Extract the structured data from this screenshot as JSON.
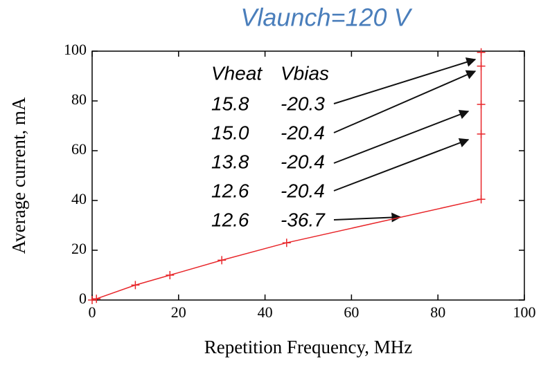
{
  "chart_data": {
    "type": "line",
    "title": "Vlaunch=120 V",
    "xlabel": "Repetition Frequency, MHz",
    "ylabel": "Average current, mA",
    "series": [
      {
        "name": "Average current",
        "color": "#e8262a",
        "x": [
          0,
          1,
          10,
          18,
          30,
          45,
          90,
          90,
          90,
          90,
          90
        ],
        "values": [
          0,
          0.5,
          6,
          10,
          16,
          23,
          40.5,
          66.7,
          78.6,
          94,
          99.5
        ]
      }
    ],
    "xlim": [
      0,
      100
    ],
    "xticks": [
      0,
      20,
      40,
      60,
      80,
      100
    ],
    "ylim": [
      0,
      100
    ],
    "yticks": [
      0,
      20,
      40,
      60,
      80,
      100
    ],
    "annotations": {
      "headers": [
        "Vheat",
        "Vbias"
      ],
      "rows": [
        [
          "15.8",
          "-20.3"
        ],
        [
          "15.0",
          "-20.4"
        ],
        [
          "13.8",
          "-20.4"
        ],
        [
          "12.6",
          "-20.4"
        ],
        [
          "12.6",
          "-36.7"
        ]
      ]
    }
  }
}
